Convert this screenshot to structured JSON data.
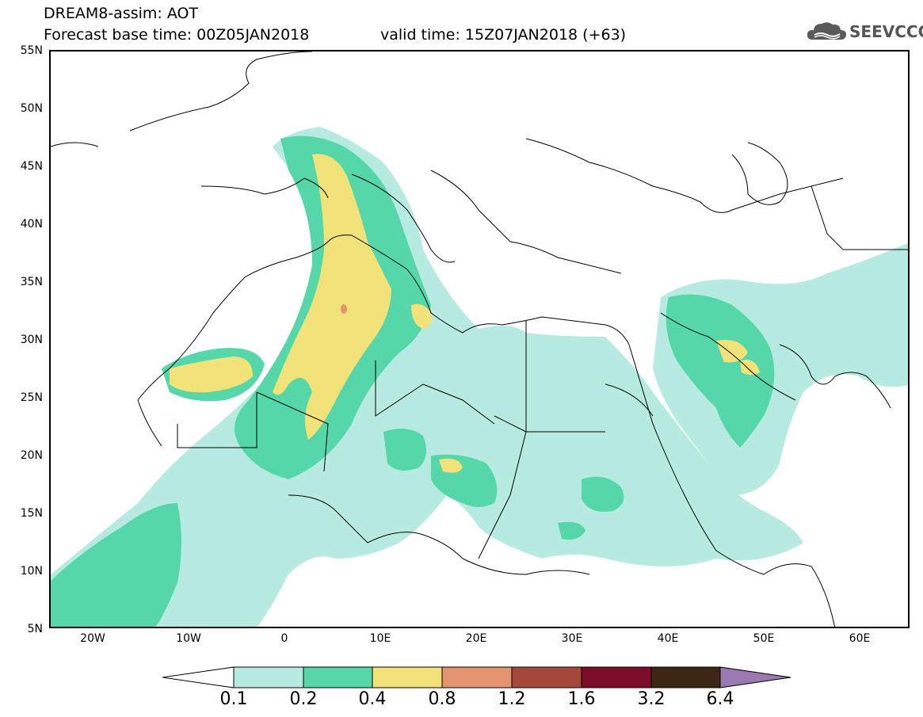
{
  "header": {
    "title": "DREAM8-assim: AOT",
    "base_time": "Forecast base time: 00Z05JAN2018",
    "valid_time": "valid time: 15Z07JAN2018 (+63)",
    "logo_text": "SEEVCCC"
  },
  "axes": {
    "lat_labels": [
      "55N",
      "50N",
      "45N",
      "40N",
      "35N",
      "30N",
      "25N",
      "20N",
      "15N",
      "10N",
      "5N"
    ],
    "lon_labels": [
      "20W",
      "10W",
      "0",
      "10E",
      "20E",
      "30E",
      "40E",
      "50E",
      "60E"
    ]
  },
  "colorbar": {
    "labels": [
      "0.1",
      "0.2",
      "0.4",
      "0.8",
      "1.2",
      "1.6",
      "3.2",
      "6.4"
    ],
    "colors": [
      "#ffffff",
      "#b7ebe2",
      "#55d7a9",
      "#f2e27a",
      "#e59470",
      "#a6473b",
      "#7c0d2a",
      "#3c2714",
      "#9a79b0"
    ]
  },
  "map": {
    "background": "#ffffff",
    "border_color": "#000000"
  }
}
